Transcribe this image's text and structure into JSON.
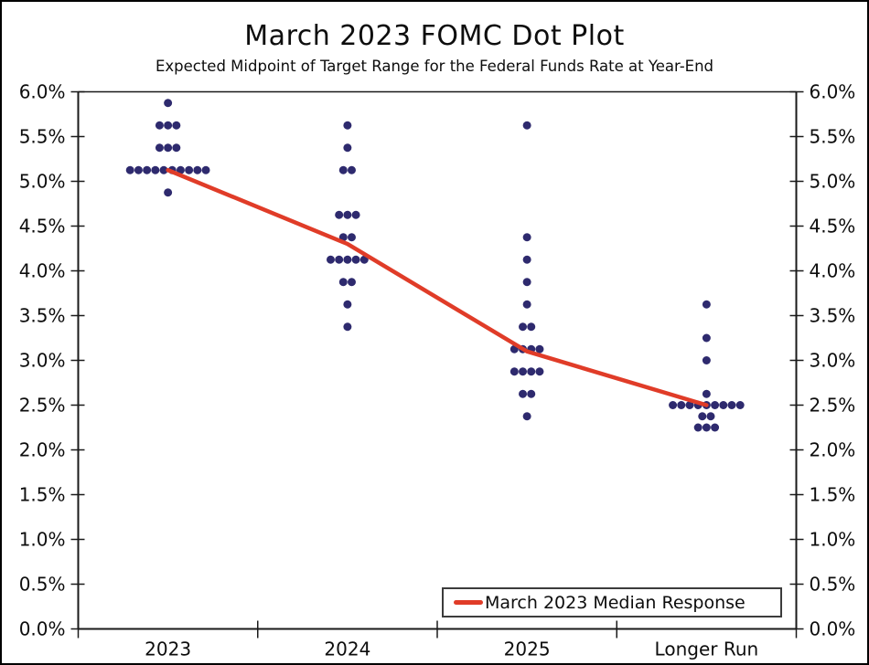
{
  "header": {
    "title": "March 2023 FOMC Dot Plot",
    "subtitle": "Expected Midpoint of Target Range for the Federal Funds Rate at Year-End"
  },
  "legend": {
    "label": "March 2023 Median Response"
  },
  "colors": {
    "dot": "#2e2a6e",
    "median_line": "#e03c28",
    "axis": "#1a1a1a",
    "text": "#0d0d0d",
    "background": "#ffffff"
  },
  "chart_data": {
    "type": "scatter",
    "title": "March 2023 FOMC Dot Plot",
    "subtitle": "Expected Midpoint of Target Range for the Federal Funds Rate at Year-End",
    "categories": [
      "2023",
      "2024",
      "2025",
      "Longer Run"
    ],
    "ylim": [
      0,
      6
    ],
    "ytick_step": 0.5,
    "ytick_suffix": "%",
    "yticks_both_sides": true,
    "grid": false,
    "legend_position": "bottom-right",
    "columns": [
      {
        "category": "2023",
        "dots": [
          {
            "rate": 5.875,
            "count": 1
          },
          {
            "rate": 5.625,
            "count": 3
          },
          {
            "rate": 5.375,
            "count": 3
          },
          {
            "rate": 5.125,
            "count": 10
          },
          {
            "rate": 4.875,
            "count": 1
          }
        ]
      },
      {
        "category": "2024",
        "dots": [
          {
            "rate": 5.625,
            "count": 1
          },
          {
            "rate": 5.375,
            "count": 1
          },
          {
            "rate": 5.125,
            "count": 2
          },
          {
            "rate": 4.625,
            "count": 3
          },
          {
            "rate": 4.375,
            "count": 2
          },
          {
            "rate": 4.125,
            "count": 5
          },
          {
            "rate": 3.875,
            "count": 2
          },
          {
            "rate": 3.625,
            "count": 1
          },
          {
            "rate": 3.375,
            "count": 1
          }
        ]
      },
      {
        "category": "2025",
        "dots": [
          {
            "rate": 5.625,
            "count": 1
          },
          {
            "rate": 4.375,
            "count": 1
          },
          {
            "rate": 4.125,
            "count": 1
          },
          {
            "rate": 3.875,
            "count": 1
          },
          {
            "rate": 3.625,
            "count": 1
          },
          {
            "rate": 3.375,
            "count": 2
          },
          {
            "rate": 3.125,
            "count": 4
          },
          {
            "rate": 2.875,
            "count": 4
          },
          {
            "rate": 2.625,
            "count": 2
          },
          {
            "rate": 2.375,
            "count": 1
          }
        ]
      },
      {
        "category": "Longer Run",
        "dots": [
          {
            "rate": 3.625,
            "count": 1
          },
          {
            "rate": 3.25,
            "count": 1
          },
          {
            "rate": 3.0,
            "count": 1
          },
          {
            "rate": 2.625,
            "count": 1
          },
          {
            "rate": 2.5,
            "count": 9
          },
          {
            "rate": 2.375,
            "count": 2
          },
          {
            "rate": 2.25,
            "count": 3
          }
        ]
      }
    ],
    "median_series": {
      "name": "March 2023 Median Response",
      "values": [
        5.125,
        4.3,
        3.1,
        2.5
      ]
    }
  }
}
